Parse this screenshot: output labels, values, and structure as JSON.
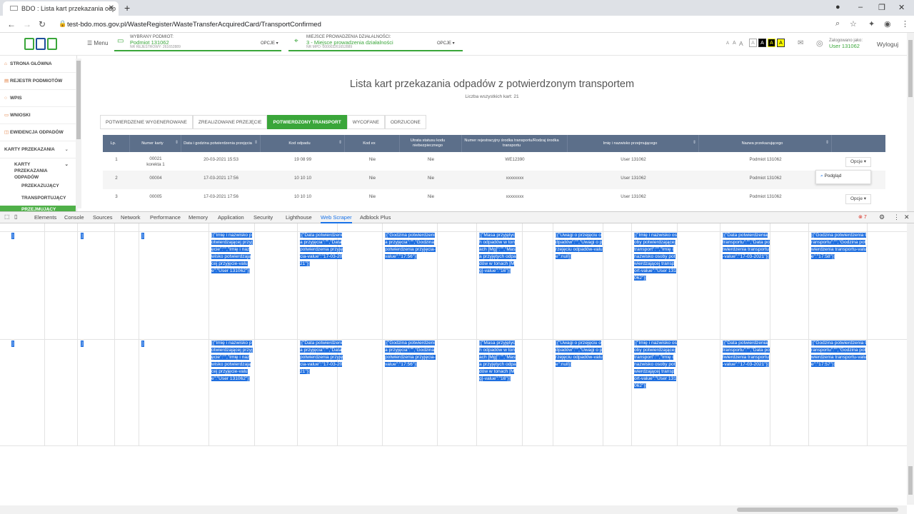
{
  "browser": {
    "tab_title": "BDO : Lista kart przekazania odp",
    "url": "test-bdo.mos.gov.pl/WasteRegister/WasteTransferAcquiredCard/TransportConfirmed"
  },
  "header": {
    "menu_label": "Menu",
    "ctx1_label": "WYBRANY PODMIOT:",
    "ctx1_value": "Podmiot 131062",
    "ctx1_sub": "NR REJESTROWY: 261652889",
    "ctx_options": "OPCJE",
    "ctx2_label": "MIEJSCE PROWADZENIA DZIAŁALNOŚCI:",
    "ctx2_value": "3 - Miejsce prowadzenia działalności",
    "ctx2_sub": "NR MPD: 000003261652889",
    "font_sizes": [
      "A",
      "A",
      "A"
    ],
    "contrast": [
      "A",
      "A",
      "A"
    ],
    "logged_label": "Zalogowano jako:",
    "logged_user": "User 131062",
    "logout": "Wyloguj"
  },
  "sidebar": {
    "items": [
      "STRONA GŁÓWNA",
      "REJESTR PODMIOTÓW",
      "WPIS",
      "WNIOSKI",
      "EWIDENCJA ODPADÓW",
      "KARTY PRZEKAZANIA"
    ],
    "sub_karty": "KARTY PRZEKAZANIA ODPADÓW",
    "sub1": "PRZEKAZUJĄCY",
    "sub2": "TRANSPORTUJĄCY",
    "sub3": "PRZEJMUJĄCY"
  },
  "main": {
    "title": "Lista kart przekazania odpadów z potwierdzonym transportem",
    "count": "Liczba wszystkich kart: 21",
    "tabs": [
      "POTWIERDZENIE WYGENEROWANE",
      "ZREALIZOWANE PRZEJĘCIE",
      "POTWIERDZONY TRANSPORT",
      "WYCOFANE",
      "ODRZUCONE"
    ],
    "columns": [
      "Lp.",
      "Numer karty",
      "Data i godzina potwierdzenia przejęcia",
      "Kod odpadu",
      "Kod ex",
      "Utrata statusu kodu niebezpiecznego",
      "Numer rejestracyjny środka transportu/Rodzaj środka transportu",
      "Imię i nazwisko przejmującego",
      "Nazwa przekazującego"
    ],
    "rows": [
      {
        "lp": "1",
        "nr": "00021",
        "nr2": "korekta 1",
        "date": "20-03-2021 15:53",
        "kod": "19 08 99",
        "ex": "Nie",
        "utrata": "Nie",
        "rej": "WE12390",
        "imie": "User 131062",
        "nazwa": "Podmiot 131062"
      },
      {
        "lp": "2",
        "nr": "00004",
        "nr2": "",
        "date": "17-03-2021 17:56",
        "kod": "10 10 10",
        "ex": "Nie",
        "utrata": "Nie",
        "rej": "xxxxxxxx",
        "imie": "User 131062",
        "nazwa": "Podmiot 131062"
      },
      {
        "lp": "3",
        "nr": "00005",
        "nr2": "",
        "date": "17-03-2021 17:56",
        "kod": "10 10 10",
        "ex": "Nie",
        "utrata": "Nie",
        "rej": "xxxxxxxx",
        "imie": "User 131062",
        "nazwa": "Podmiot 131062"
      }
    ],
    "options_label": "Opcje",
    "dropdown_item": "Podgląd"
  },
  "devtools": {
    "tabs": [
      "Elements",
      "Console",
      "Sources",
      "Network",
      "Performance",
      "Memory",
      "Application",
      "Security",
      "Lighthouse",
      "Web Scraper",
      "Adblock Plus"
    ],
    "error_count": "7"
  },
  "scraper": {
    "row1": [
      "[{\"Imię i nazwisko potwierdzającej przyjęcie\":\"\",\"Imię i nazwisko potwierdzającej przyjęcie-value\":\"User 131062\"}]",
      "[{\"Data potwierdzenia przyjęcia\":\"\",\"Data potwierdzenia przyjęcia-value\":\"17-03-2021\"}]",
      "[{\"Godzina potwierdzenia przyjęcia\":\"\",\"Godzina potwierdzenia przyjęcia-value\":\"17:56\"}]",
      "[{\"Masa przyjętych odpadów w tonach [Mg]\":\"\",\"Masa przyjętych odpadów w tonach [Mg]-value\":\"16\"}]",
      "[{\"Uwagi o przejęciu odpadów\":\"\",\"Uwagi o przejęciu odpadów-value\":null}]",
      "[{\"Imię i nazwisko osoby potwierdzającej transport\":\"\",\"Imię i nazwisko osoby potwierdzającej transport-value\":\"User 131062\"}]",
      "[{\"Data potwierdzenia transportu\":\"\",\"Data potwierdzenia transportu-value\":\"17-03-2021\"}]",
      "[{\"Godzina potwierdzenia transportu\":\"\",\"Godzina potwierdzenia transportu-value\":\"17:58\"}]"
    ],
    "row2": [
      "[{\"Imię i nazwisko potwierdzającej przyjęcie\":\"\",\"Imię i nazwisko potwierdzającej przyjęcie-value\":\"User 131062\"}]",
      "[{\"Data potwierdzenia przyjęcia\":\"\",\"Data potwierdzenia przyjęcia-value\":\"17-03-2021\"}]",
      "[{\"Godzina potwierdzenia przyjęcia\":\"\",\"Godzina potwierdzenia przyjęcia-value\":\"17:56\"}]",
      "[{\"Masa przyjętych odpadów w tonach [Mg]\":\"\",\"Masa przyjętych odpadów w tonach [Mg]-value\":\"16\"}]",
      "[{\"Uwagi o przejęciu odpadów\":\"\",\"Uwagi o przejęciu odpadów-value\":null}]",
      "[{\"Imię i nazwisko osoby potwierdzającej transport\":\"\",\"Imię i nazwisko osoby potwierdzającej transport-value\":\"User 131062\"}]",
      "[{\"Data potwierdzenia transportu\":\"\",\"Data potwierdzenia transportu-value\":\"17-03-2021\"}]",
      "[{\"Godzina potwierdzenia transportu\":\"\",\"Godzina potwierdzenia transportu-value\":\"17:57\"}]"
    ],
    "bracket": "]"
  }
}
